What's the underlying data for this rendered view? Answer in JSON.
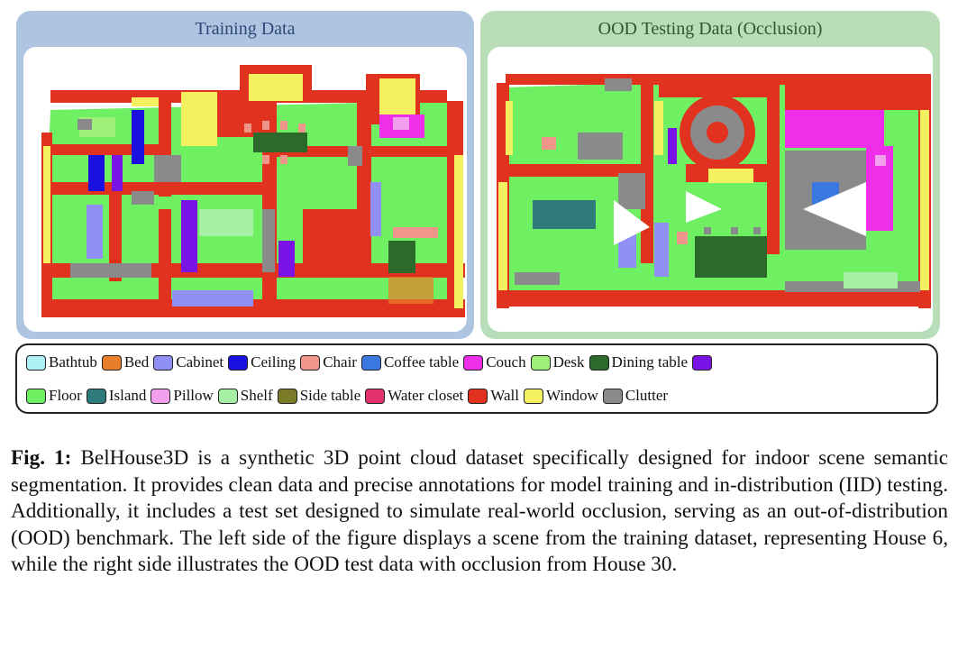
{
  "panels": {
    "training": {
      "title": "Training Data"
    },
    "ood": {
      "title": "OOD Testing Data (Occlusion)"
    }
  },
  "legend": {
    "items": [
      {
        "label": "Bathtub",
        "color": "#aef0f4"
      },
      {
        "label": "Bed",
        "color": "#e87e2a"
      },
      {
        "label": "Cabinet",
        "color": "#8f8ff5"
      },
      {
        "label": "Ceiling",
        "color": "#1a10e0"
      },
      {
        "label": "Chair",
        "color": "#f0958a"
      },
      {
        "label": "Coffee table",
        "color": "#3b78e0"
      },
      {
        "label": "Couch",
        "color": "#ee2ee8"
      },
      {
        "label": "Desk",
        "color": "#9ff07a"
      },
      {
        "label": "Dining table",
        "color": "#2b6a2b"
      },
      {
        "label": "",
        "color": "#7a14e6"
      },
      {
        "label": "Floor",
        "color": "#6ef062"
      },
      {
        "label": "Island",
        "color": "#2f7a7a"
      },
      {
        "label": "Pillow",
        "color": "#f2a0ee"
      },
      {
        "label": "Shelf",
        "color": "#a5f0a5"
      },
      {
        "label": "Side table",
        "color": "#7a7a28"
      },
      {
        "label": "Water closet",
        "color": "#e0306e"
      },
      {
        "label": "Wall",
        "color": "#e0321e"
      },
      {
        "label": "Window",
        "color": "#f5f060"
      },
      {
        "label": "Clutter",
        "color": "#8a8a8a"
      }
    ]
  },
  "caption": {
    "label": "Fig. 1:",
    "text": "BelHouse3D is a synthetic 3D point cloud dataset specifically designed for indoor scene semantic segmentation. It provides clean data and precise annotations for model training and in-distribution (IID) testing. Additionally, it includes a test set designed to simulate real-world occlusion, serving as an out-of-distribution (OOD) benchmark. The left side of the figure displays a scene from the training dataset, representing House 6, while the right side illustrates the OOD test data with occlusion from House 30."
  }
}
